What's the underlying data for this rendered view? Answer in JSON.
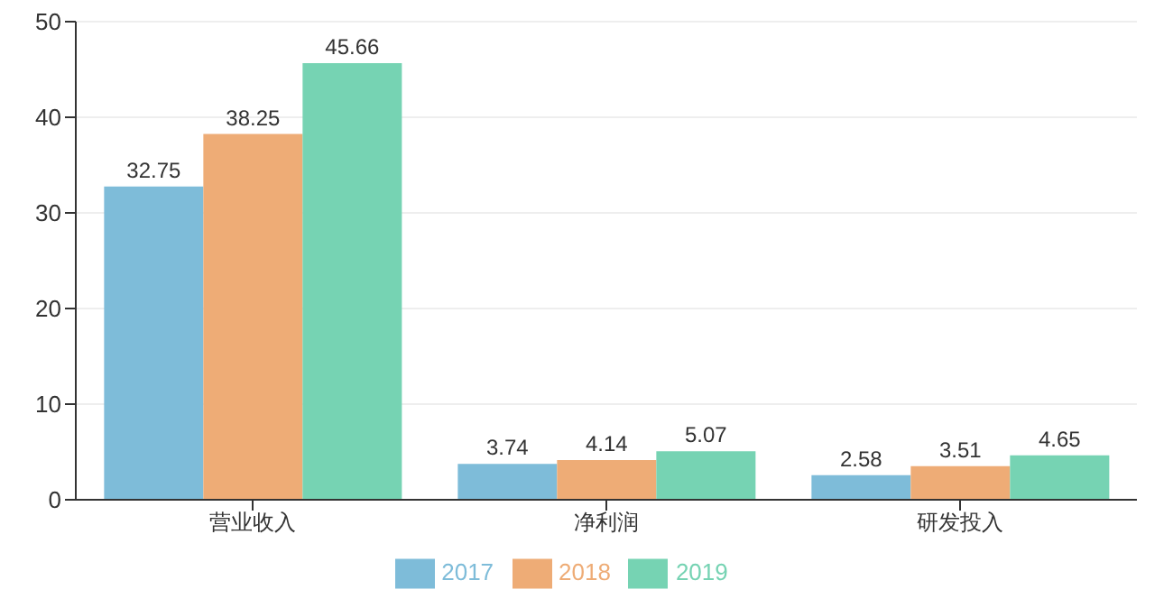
{
  "chart_data": {
    "type": "bar",
    "categories": [
      "营业收入",
      "净利润",
      "研发投入"
    ],
    "series": [
      {
        "name": "2017",
        "color": "#7ebcd9",
        "values": [
          32.75,
          3.74,
          2.58
        ]
      },
      {
        "name": "2018",
        "color": "#eeac76",
        "values": [
          38.25,
          4.14,
          3.51
        ]
      },
      {
        "name": "2019",
        "color": "#76d3b3",
        "values": [
          45.66,
          5.07,
          4.65
        ]
      }
    ],
    "ylim": [
      0,
      50
    ],
    "yticks": [
      0,
      10,
      20,
      30,
      40,
      50
    ],
    "grid": "y",
    "legend": "bottom",
    "data_labels": true
  }
}
